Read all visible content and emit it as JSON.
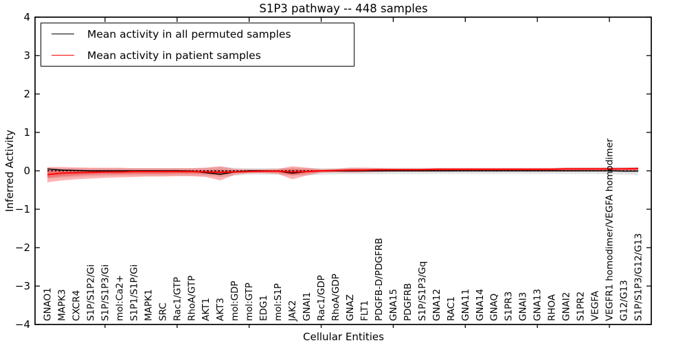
{
  "title": "S1P3 pathway -- 448 samples",
  "axes": {
    "ylabel": "Inferred Activity",
    "xlabel": "Cellular Entities"
  },
  "legend": {
    "items": [
      {
        "label": "Mean activity in all permuted samples",
        "color": "#000000"
      },
      {
        "label": "Mean activity in patient samples",
        "color": "#ff0000"
      }
    ]
  },
  "chart_data": {
    "type": "line",
    "title": "S1P3 pathway -- 448 samples",
    "xlabel": "Cellular Entities",
    "ylabel": "Inferred Activity",
    "ylim": [
      -4,
      4
    ],
    "grid": false,
    "legend_position": "upper left",
    "yticks": [
      {
        "v": 4,
        "label": "4"
      },
      {
        "v": 3,
        "label": "3"
      },
      {
        "v": 2,
        "label": "2"
      },
      {
        "v": 1,
        "label": "1"
      },
      {
        "v": 0,
        "label": "0"
      },
      {
        "v": -1,
        "label": "−1"
      },
      {
        "v": -2,
        "label": "−2"
      },
      {
        "v": -3,
        "label": "−3"
      },
      {
        "v": -4,
        "label": "−4"
      }
    ],
    "x_major_tick_indices": [
      4,
      9,
      14,
      19,
      24,
      29,
      34,
      39
    ],
    "categories": [
      "GNAO1",
      "MAPK3",
      "CXCR4",
      "S1P/S1P2/Gi",
      "S1P/S1P3/Gi",
      "mol:Ca2+",
      "S1P1/S1P/Gi",
      "MAPK1",
      "SRC",
      "Rac1/GTP",
      "RhoA/GTP",
      "AKT1",
      "AKT3",
      "mol:GDP",
      "mol:GTP",
      "EDG1",
      "mol:S1P",
      "JAK2",
      "GNAI1",
      "Rac1/GDP",
      "RhoA/GDP",
      "GNAZ",
      "FLT1",
      "PDGFB-D/PDGFRB",
      "GNA15",
      "PDGFRB",
      "S1P/S1P3/Gq",
      "GNA12",
      "RAC1",
      "GNA11",
      "GNA14",
      "GNAQ",
      "S1PR3",
      "GNAI3",
      "GNA13",
      "RHOA",
      "GNAI2",
      "S1PR2",
      "VEGFA",
      "VEGFR1 homodimer/VEGFA homodimer",
      "G12/G13",
      "S1P/S1P3/G12/G13"
    ],
    "zero_line": {
      "value": 0,
      "style": "dashed",
      "color": "#000000"
    },
    "series": [
      {
        "name": "Mean activity in all permuted samples",
        "color": "#000000",
        "style": "solid",
        "values": [
          0.05,
          0.02,
          0.01,
          0,
          0,
          0,
          0,
          0,
          0,
          0,
          -0.01,
          -0.05,
          -0.09,
          -0.03,
          0,
          0,
          -0.01,
          -0.06,
          -0.02,
          0,
          0,
          0,
          0,
          0,
          0,
          0,
          0,
          0,
          0,
          0,
          0,
          0,
          0,
          0,
          0,
          0,
          0,
          0,
          0,
          0,
          -0.01,
          -0.01
        ]
      },
      {
        "name": "Mean activity in patient samples",
        "color": "#ff0000",
        "style": "solid",
        "values": [
          -0.1,
          -0.06,
          -0.05,
          -0.04,
          -0.03,
          -0.03,
          -0.02,
          -0.02,
          -0.02,
          -0.02,
          -0.02,
          -0.03,
          -0.04,
          -0.03,
          -0.02,
          -0.01,
          -0.01,
          -0.03,
          -0.02,
          0,
          0.01,
          0.02,
          0.02,
          0.03,
          0.03,
          0.03,
          0.03,
          0.04,
          0.04,
          0.04,
          0.04,
          0.04,
          0.04,
          0.04,
          0.04,
          0.04,
          0.05,
          0.05,
          0.05,
          0.05,
          0.05,
          0.06
        ]
      }
    ],
    "bands": [
      {
        "name": "permuted-samples-range",
        "color": "rgba(0,0,0,0.11)",
        "upper": [
          0.06,
          0.07,
          0.07,
          0.07,
          0.07,
          0.07,
          0.07,
          0.07,
          0.07,
          0.07,
          0.07,
          0.08,
          0.1,
          0.08,
          0.07,
          0.07,
          0.07,
          0.08,
          0.08,
          0.07,
          0.07,
          0.08,
          0.08,
          0.08,
          0.08,
          0.08,
          0.08,
          0.08,
          0.08,
          0.08,
          0.08,
          0.08,
          0.08,
          0.08,
          0.08,
          0.08,
          0.09,
          0.09,
          0.09,
          0.1,
          0.1,
          0.1
        ],
        "lower": [
          -0.2,
          -0.18,
          -0.16,
          -0.14,
          -0.13,
          -0.12,
          -0.12,
          -0.12,
          -0.12,
          -0.12,
          -0.12,
          -0.13,
          -0.16,
          -0.13,
          -0.1,
          -0.1,
          -0.1,
          -0.12,
          -0.12,
          -0.1,
          -0.09,
          -0.09,
          -0.09,
          -0.09,
          -0.08,
          -0.08,
          -0.08,
          -0.08,
          -0.08,
          -0.08,
          -0.08,
          -0.08,
          -0.08,
          -0.08,
          -0.08,
          -0.08,
          -0.08,
          -0.08,
          -0.08,
          -0.09,
          -0.1,
          -0.1
        ]
      },
      {
        "name": "patient-samples-range-outer",
        "color": "rgba(255,0,0,0.30)",
        "upper": [
          0.1,
          0.1,
          0.09,
          0.08,
          0.08,
          0.08,
          0.07,
          0.07,
          0.07,
          0.07,
          0.07,
          0.08,
          0.12,
          0.05,
          0.04,
          0.04,
          0.05,
          0.12,
          0.08,
          0.04,
          0.05,
          0.08,
          0.08,
          0.07,
          0.06,
          0.06,
          0.06,
          0.07,
          0.07,
          0.07,
          0.07,
          0.07,
          0.07,
          0.07,
          0.07,
          0.07,
          0.08,
          0.08,
          0.08,
          0.08,
          0.08,
          0.09
        ],
        "lower": [
          -0.3,
          -0.25,
          -0.22,
          -0.2,
          -0.18,
          -0.17,
          -0.16,
          -0.15,
          -0.15,
          -0.14,
          -0.14,
          -0.16,
          -0.25,
          -0.1,
          -0.06,
          -0.06,
          -0.08,
          -0.22,
          -0.12,
          -0.05,
          -0.04,
          -0.05,
          -0.04,
          -0.03,
          -0.02,
          -0.02,
          -0.02,
          -0.02,
          -0.02,
          -0.01,
          -0.01,
          -0.01,
          -0.01,
          -0.01,
          -0.01,
          -0.01,
          0,
          0,
          0,
          0.01,
          0.01,
          0.01
        ]
      },
      {
        "name": "patient-samples-range-inner",
        "color": "rgba(255,0,0,0.27)",
        "upper": [
          0.02,
          0.03,
          0.03,
          0.02,
          0.02,
          0.02,
          0.02,
          0.02,
          0.02,
          0.02,
          0.02,
          0.02,
          0.03,
          0.01,
          0.01,
          0.01,
          0.02,
          0.05,
          0.03,
          0.02,
          0.02,
          0.04,
          0.04,
          0.04,
          0.04,
          0.04,
          0.04,
          0.05,
          0.05,
          0.05,
          0.05,
          0.05,
          0.05,
          0.05,
          0.05,
          0.05,
          0.06,
          0.06,
          0.06,
          0.06,
          0.06,
          0.07
        ],
        "lower": [
          -0.18,
          -0.14,
          -0.12,
          -0.1,
          -0.09,
          -0.09,
          -0.08,
          -0.08,
          -0.08,
          -0.07,
          -0.07,
          -0.08,
          -0.12,
          -0.05,
          -0.04,
          -0.04,
          -0.04,
          -0.12,
          -0.06,
          -0.03,
          -0.02,
          -0.02,
          -0.02,
          -0.01,
          -0.01,
          0,
          0,
          0,
          0,
          0,
          0,
          0.01,
          0.01,
          0.01,
          0.01,
          0.01,
          0.01,
          0.01,
          0.02,
          0.02,
          0.02,
          0.02
        ]
      }
    ]
  }
}
